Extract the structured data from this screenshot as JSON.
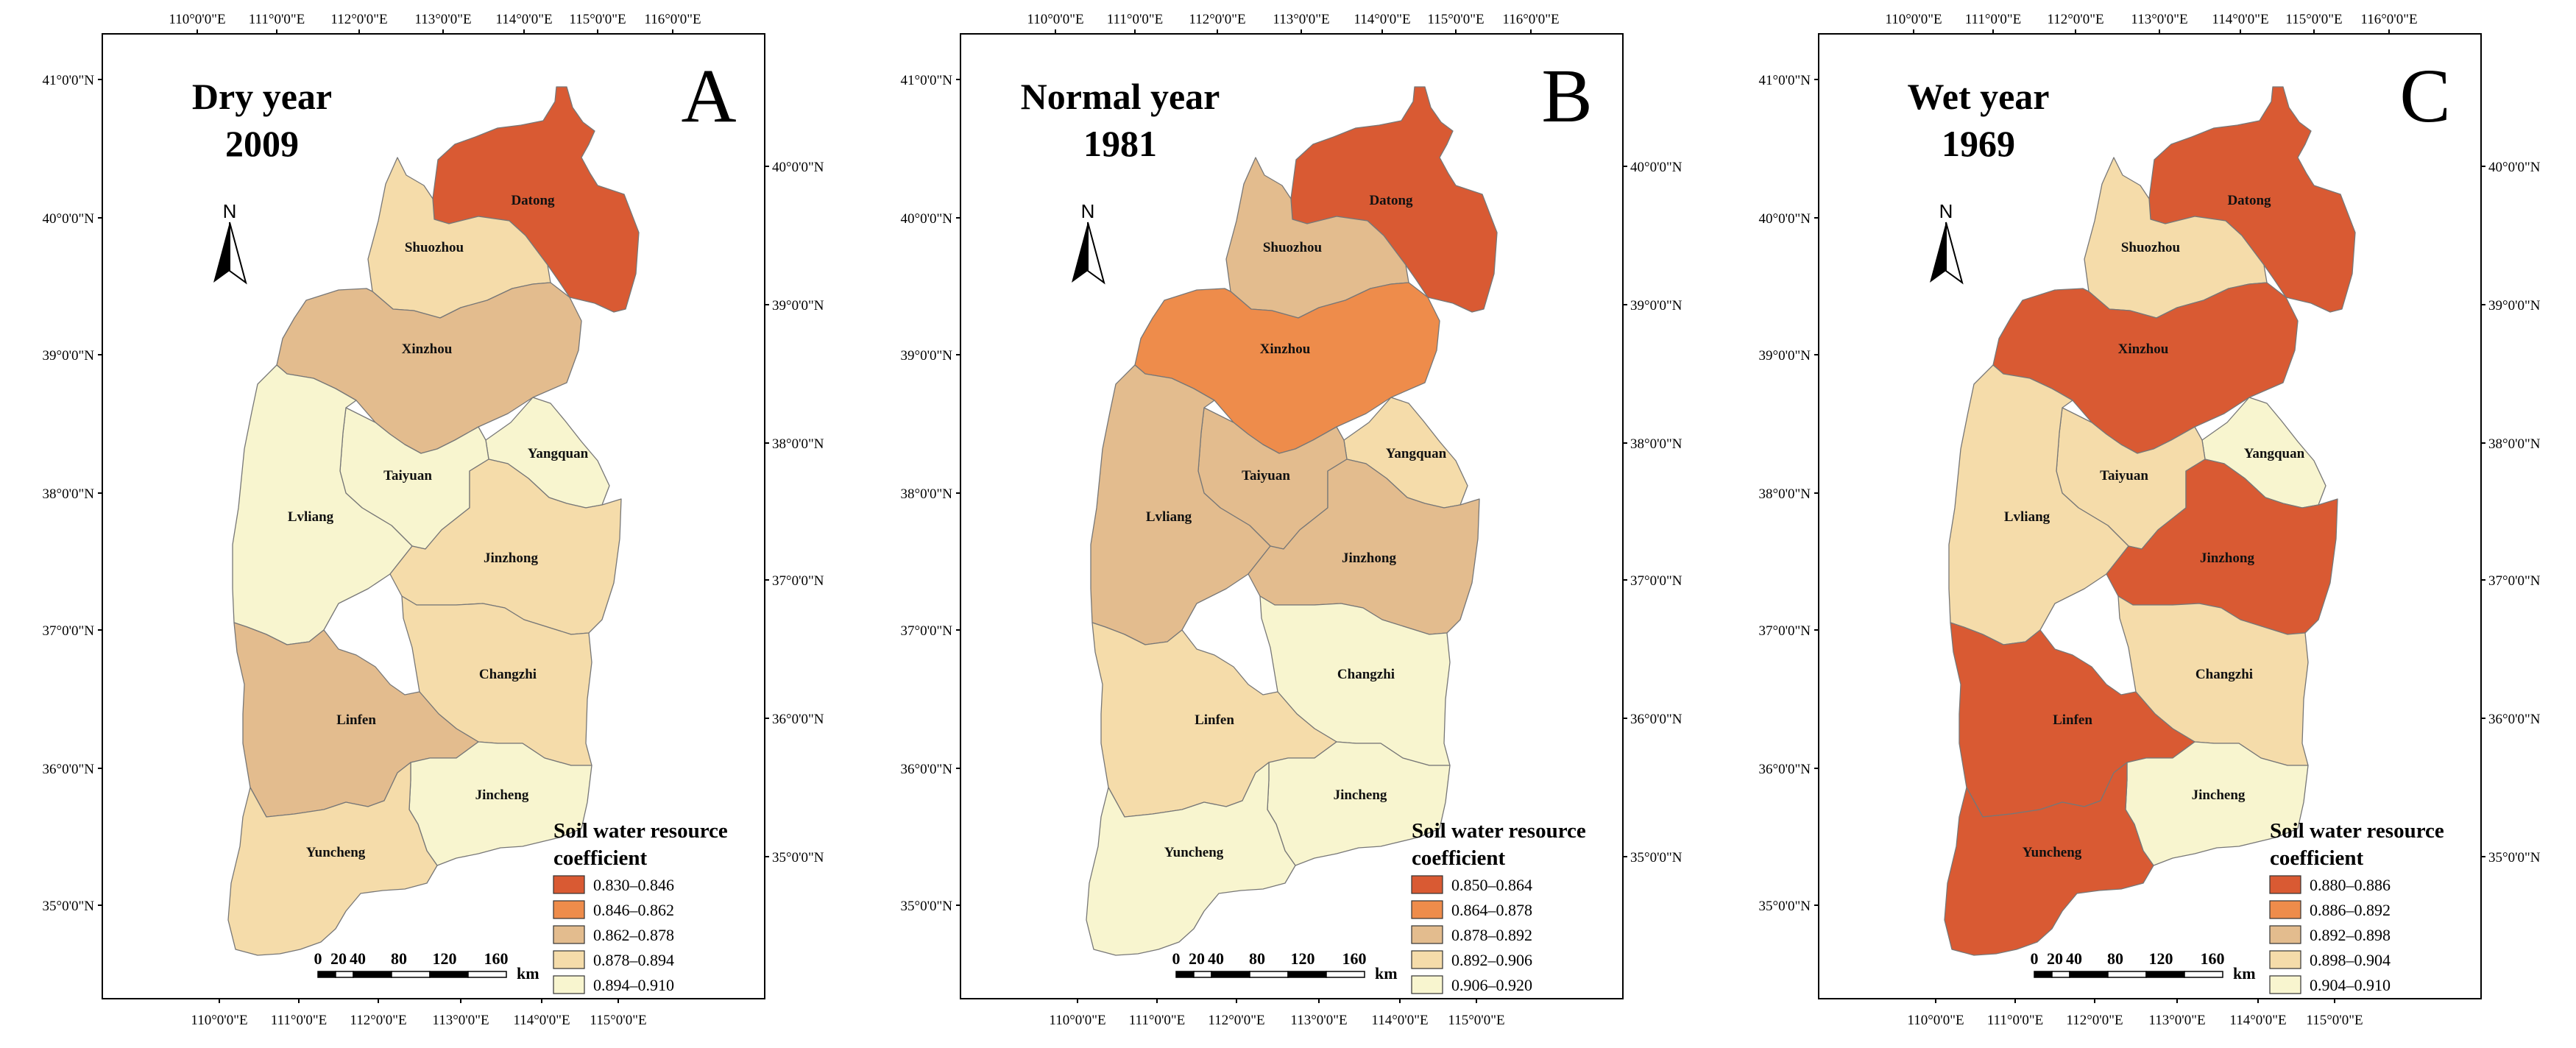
{
  "colors": {
    "c1": "#d95a33",
    "c2": "#ee8c4b",
    "c3": "#e3bc8e",
    "c4": "#f5dcaa",
    "c5": "#f8f5cf"
  },
  "axes": {
    "top_lon": [
      "110°0'0\"E",
      "111°0'0\"E",
      "112°0'0\"E",
      "113°0'0\"E",
      "114°0'0\"E",
      "115°0'0\"E",
      "116°0'0\"E"
    ],
    "bottom_lon": [
      "110°0'0\"E",
      "111°0'0\"E",
      "112°0'0\"E",
      "113°0'0\"E",
      "114°0'0\"E",
      "115°0'0\"E"
    ],
    "left_lat": [
      "41°0'0\"N",
      "40°0'0\"N",
      "39°0'0\"N",
      "38°0'0\"N",
      "37°0'0\"N",
      "36°0'0\"N",
      "35°0'0\"N"
    ],
    "right_lat": [
      "40°0'0\"N",
      "39°0'0\"N",
      "38°0'0\"N",
      "37°0'0\"N",
      "36°0'0\"N",
      "35°0'0\"N"
    ]
  },
  "north_label": "N",
  "scale": {
    "labels": [
      "0",
      "20",
      "40",
      "80",
      "120",
      "160"
    ],
    "unit": "km"
  },
  "regions": [
    "Datong",
    "Shuozhou",
    "Xinzhou",
    "Yangquan",
    "Taiyuan",
    "Lvliang",
    "Jinzhong",
    "Changzhi",
    "Linfen",
    "Jincheng",
    "Yuncheng"
  ],
  "panels": [
    {
      "letter": "A",
      "title_line1": "Dry year",
      "title_line2": "2009",
      "legend_title_line1": "Soil water resource",
      "legend_title_line2": "coefficient",
      "legend": [
        "0.830–0.846",
        "0.846–0.862",
        "0.862–0.878",
        "0.878–0.894",
        "0.894–0.910"
      ],
      "region_classes": {
        "Datong": 1,
        "Shuozhou": 4,
        "Xinzhou": 3,
        "Yangquan": 5,
        "Taiyuan": 5,
        "Lvliang": 5,
        "Jinzhong": 4,
        "Changzhi": 4,
        "Linfen": 3,
        "Jincheng": 5,
        "Yuncheng": 4
      }
    },
    {
      "letter": "B",
      "title_line1": "Normal year",
      "title_line2": "1981",
      "legend_title_line1": "Soil water resource",
      "legend_title_line2": "coefficient",
      "legend": [
        "0.850–0.864",
        "0.864–0.878",
        "0.878–0.892",
        "0.892–0.906",
        "0.906–0.920"
      ],
      "region_classes": {
        "Datong": 1,
        "Shuozhou": 3,
        "Xinzhou": 2,
        "Yangquan": 4,
        "Taiyuan": 3,
        "Lvliang": 3,
        "Jinzhong": 3,
        "Changzhi": 5,
        "Linfen": 4,
        "Jincheng": 5,
        "Yuncheng": 5
      }
    },
    {
      "letter": "C",
      "title_line1": "Wet year",
      "title_line2": "1969",
      "legend_title_line1": "Soil water resource",
      "legend_title_line2": "coefficient",
      "legend": [
        "0.880–0.886",
        "0.886–0.892",
        "0.892–0.898",
        "0.898–0.904",
        "0.904–0.910"
      ],
      "region_classes": {
        "Datong": 1,
        "Shuozhou": 4,
        "Xinzhou": 1,
        "Yangquan": 5,
        "Taiyuan": 4,
        "Lvliang": 4,
        "Jinzhong": 1,
        "Changzhi": 4,
        "Linfen": 1,
        "Jincheng": 5,
        "Yuncheng": 1
      }
    }
  ]
}
